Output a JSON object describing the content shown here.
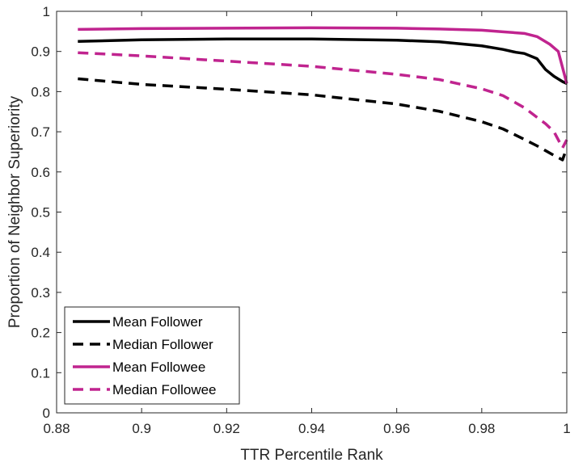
{
  "chart_data": {
    "type": "line",
    "title": "",
    "xlabel": "TTR Percentile Rank",
    "ylabel": "Proportion of Neighbor Superiority",
    "xlim": [
      0.88,
      1.0
    ],
    "ylim": [
      0,
      1
    ],
    "xticks": [
      0.88,
      0.9,
      0.92,
      0.94,
      0.96,
      0.98,
      1
    ],
    "xtick_labels": [
      "0.88",
      "0.9",
      "0.92",
      "0.94",
      "0.96",
      "0.98",
      "1"
    ],
    "yticks": [
      0,
      0.1,
      0.2,
      0.3,
      0.4,
      0.5,
      0.6,
      0.7,
      0.8,
      0.9,
      1
    ],
    "ytick_labels": [
      "0",
      "0.1",
      "0.2",
      "0.3",
      "0.4",
      "0.5",
      "0.6",
      "0.7",
      "0.8",
      "0.9",
      "1"
    ],
    "grid": false,
    "legend_position": "bottom-left",
    "series": [
      {
        "name": "Mean Follower",
        "color": "#000000",
        "dash": "solid",
        "x": [
          0.885,
          0.9,
          0.92,
          0.94,
          0.96,
          0.97,
          0.98,
          0.985,
          0.988,
          0.99,
          0.993,
          0.995,
          0.997,
          0.999,
          1.0
        ],
        "y": [
          0.925,
          0.929,
          0.931,
          0.931,
          0.928,
          0.924,
          0.914,
          0.905,
          0.898,
          0.895,
          0.882,
          0.855,
          0.838,
          0.825,
          0.82
        ]
      },
      {
        "name": "Median Follower",
        "color": "#000000",
        "dash": "dashed",
        "x": [
          0.885,
          0.9,
          0.92,
          0.94,
          0.96,
          0.97,
          0.98,
          0.985,
          0.99,
          0.993,
          0.995,
          0.997,
          0.999,
          1.0
        ],
        "y": [
          0.832,
          0.818,
          0.806,
          0.792,
          0.769,
          0.751,
          0.725,
          0.707,
          0.681,
          0.665,
          0.653,
          0.641,
          0.63,
          0.66
        ]
      },
      {
        "name": "Mean Followee",
        "color": "#c0248f",
        "dash": "solid",
        "x": [
          0.885,
          0.9,
          0.92,
          0.94,
          0.96,
          0.97,
          0.98,
          0.985,
          0.99,
          0.993,
          0.996,
          0.998,
          1.0
        ],
        "y": [
          0.955,
          0.957,
          0.958,
          0.959,
          0.958,
          0.956,
          0.953,
          0.949,
          0.945,
          0.937,
          0.918,
          0.9,
          0.82
        ]
      },
      {
        "name": "Median Followee",
        "color": "#c0248f",
        "dash": "dashed",
        "x": [
          0.885,
          0.9,
          0.92,
          0.94,
          0.96,
          0.97,
          0.98,
          0.985,
          0.99,
          0.993,
          0.995,
          0.997,
          0.999,
          1.0
        ],
        "y": [
          0.897,
          0.889,
          0.876,
          0.863,
          0.843,
          0.83,
          0.807,
          0.79,
          0.76,
          0.736,
          0.72,
          0.7,
          0.66,
          0.68
        ]
      }
    ]
  }
}
